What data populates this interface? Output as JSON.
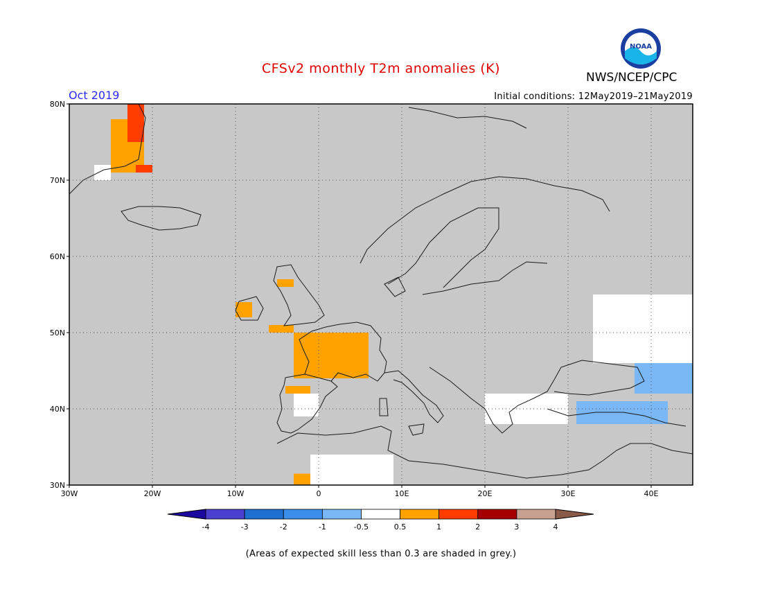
{
  "title": "CFSv2 monthly T2m anomalies (K)",
  "agency": "NWS/NCEP/CPC",
  "logo_text": "NOAA",
  "month_label": "Oct 2019",
  "initial_conditions": "Initial conditions: 12May2019–21May2019",
  "footnote": "(Areas of expected skill less than 0.3 are shaded in grey.)",
  "map": {
    "lon_range": [
      -30,
      45
    ],
    "lat_range": [
      30,
      80
    ],
    "lat_ticks": [
      {
        "v": 80,
        "label": "80N"
      },
      {
        "v": 70,
        "label": "70N"
      },
      {
        "v": 60,
        "label": "60N"
      },
      {
        "v": 50,
        "label": "50N"
      },
      {
        "v": 40,
        "label": "40N"
      },
      {
        "v": 30,
        "label": "30N"
      }
    ],
    "lon_ticks": [
      {
        "v": -30,
        "label": "30W"
      },
      {
        "v": -20,
        "label": "20W"
      },
      {
        "v": -10,
        "label": "10W"
      },
      {
        "v": 0,
        "label": "0"
      },
      {
        "v": 10,
        "label": "10E"
      },
      {
        "v": 20,
        "label": "20E"
      },
      {
        "v": 30,
        "label": "30E"
      },
      {
        "v": 40,
        "label": "40E"
      }
    ],
    "grid": true,
    "background_color": "#c8c8c8"
  },
  "colorbar": {
    "labels": [
      "-4",
      "-3",
      "-2",
      "-1",
      "-0.5",
      "0.5",
      "1",
      "2",
      "3",
      "4"
    ],
    "colors": [
      "#1c0aa0",
      "#4b3fd0",
      "#1f6fd0",
      "#3b8fea",
      "#79b8f5",
      "#ffffff",
      "#ffa200",
      "#ff3c00",
      "#a50000",
      "#c8a090",
      "#8a5a48"
    ]
  },
  "anomaly_regions": [
    {
      "category": "above_0.5",
      "color": "#ffa200",
      "lon": [
        -3,
        6
      ],
      "lat": [
        44,
        50
      ]
    },
    {
      "category": "above_0.5",
      "color": "#ffa200",
      "lon": [
        -10,
        -8
      ],
      "lat": [
        52,
        54
      ]
    },
    {
      "category": "above_0.5",
      "color": "#ffa200",
      "lon": [
        -5,
        -3
      ],
      "lat": [
        56,
        57
      ]
    },
    {
      "category": "above_0.5",
      "color": "#ffa200",
      "lon": [
        -6,
        -3
      ],
      "lat": [
        50,
        51
      ]
    },
    {
      "category": "above_0.5",
      "color": "#ffa200",
      "lon": [
        -4,
        -1
      ],
      "lat": [
        42,
        43
      ]
    },
    {
      "category": "above_0.5",
      "color": "#ffa200",
      "lon": [
        -3,
        5
      ],
      "lat": [
        30,
        31.5
      ]
    },
    {
      "category": "above_0.5",
      "color": "#ffa200",
      "lon": [
        -25,
        -21
      ],
      "lat": [
        71,
        78
      ]
    },
    {
      "category": "above_1",
      "color": "#ff3c00",
      "lon": [
        -23,
        -21
      ],
      "lat": [
        75,
        80
      ]
    },
    {
      "category": "above_1",
      "color": "#ff3c00",
      "lon": [
        -22,
        -20
      ],
      "lat": [
        71,
        72
      ]
    },
    {
      "category": "near_normal",
      "color": "#ffffff",
      "lon": [
        -1,
        9
      ],
      "lat": [
        30,
        34
      ]
    },
    {
      "category": "near_normal",
      "color": "#ffffff",
      "lon": [
        33,
        45
      ],
      "lat": [
        46,
        55
      ]
    },
    {
      "category": "near_normal",
      "color": "#ffffff",
      "lon": [
        20,
        30
      ],
      "lat": [
        38,
        42
      ]
    },
    {
      "category": "near_normal",
      "color": "#ffffff",
      "lon": [
        -3,
        0
      ],
      "lat": [
        39,
        42
      ]
    },
    {
      "category": "near_normal",
      "color": "#ffffff",
      "lon": [
        -27,
        -25
      ],
      "lat": [
        70,
        72
      ]
    },
    {
      "category": "below_-0.5",
      "color": "#79b8f5",
      "lon": [
        31,
        42
      ],
      "lat": [
        38,
        41
      ]
    },
    {
      "category": "below_-0.5",
      "color": "#79b8f5",
      "lon": [
        38,
        45
      ],
      "lat": [
        42,
        46
      ]
    }
  ]
}
